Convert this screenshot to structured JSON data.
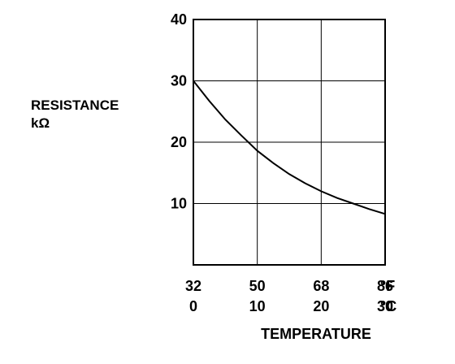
{
  "chart_data": {
    "type": "line",
    "title": "",
    "ylabel": "RESISTANCE",
    "yunit": "kΩ",
    "xlabel": "TEMPERATURE",
    "xlim_c": [
      0,
      30
    ],
    "ylim": [
      0,
      40
    ],
    "grid": true,
    "y_ticks": [
      "10",
      "20",
      "30",
      "40"
    ],
    "x_ticks_f": [
      "32",
      "50",
      "68",
      "86"
    ],
    "x_ticks_c": [
      "0",
      "10",
      "20",
      "30"
    ],
    "x_unit_f": "°F",
    "x_unit_c": "°C",
    "series": [
      {
        "x": [
          0,
          2.5,
          5,
          7.5,
          10,
          12.5,
          15,
          17.5,
          20,
          22.5,
          25,
          27.5,
          30
        ],
        "y": [
          30,
          26.7,
          23.7,
          21.1,
          18.6,
          16.6,
          14.8,
          13.3,
          12.0,
          10.9,
          10.0,
          9.1,
          8.3
        ]
      }
    ]
  }
}
